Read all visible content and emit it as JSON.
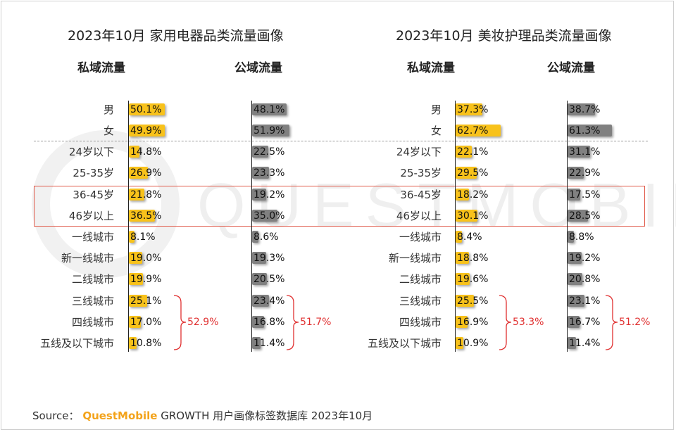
{
  "watermark": "QUESTMOBILE",
  "chart_data": [
    {
      "type": "bar",
      "title": "2023年10月 家用电器品类流量画像",
      "categories": [
        "男",
        "女",
        "24岁以下",
        "25-35岁",
        "36-45岁",
        "46岁以上",
        "一线城市",
        "新一线城市",
        "二线城市",
        "三线城市",
        "四线城市",
        "五线及以下城市"
      ],
      "series": [
        {
          "name": "私域流量",
          "values": [
            50.1,
            49.9,
            14.8,
            26.9,
            21.8,
            36.5,
            8.1,
            19.0,
            19.9,
            25.1,
            17.0,
            10.8
          ]
        },
        {
          "name": "公域流量",
          "values": [
            48.1,
            51.9,
            22.5,
            23.3,
            19.2,
            35.0,
            8.6,
            19.3,
            20.5,
            23.4,
            16.8,
            11.4
          ]
        }
      ],
      "brace_totals": [
        "52.9%",
        "51.7%"
      ]
    },
    {
      "type": "bar",
      "title": "2023年10月 美妆护理品类流量画像",
      "categories": [
        "男",
        "女",
        "24岁以下",
        "25-35岁",
        "36-45岁",
        "46岁以上",
        "一线城市",
        "新一线城市",
        "二线城市",
        "三线城市",
        "四线城市",
        "五线及以下城市"
      ],
      "series": [
        {
          "name": "私域流量",
          "values": [
            37.3,
            62.7,
            22.1,
            29.5,
            18.2,
            30.1,
            8.4,
            18.8,
            19.6,
            25.5,
            16.9,
            10.9
          ]
        },
        {
          "name": "公域流量",
          "values": [
            38.7,
            61.3,
            31.1,
            22.9,
            17.5,
            28.5,
            8.8,
            19.2,
            20.8,
            23.1,
            16.7,
            11.4
          ]
        }
      ],
      "brace_totals": [
        "53.3%",
        "51.2%"
      ]
    }
  ],
  "footer": {
    "prefix": "Source：",
    "brand": "QuestMobile",
    "text": "GROWTH 用户画像标签数据库 2023年10月"
  },
  "colors": {
    "private": "#f8c21b",
    "public": "#808080",
    "highlight": "#e05a4a",
    "total": "#e03030"
  }
}
